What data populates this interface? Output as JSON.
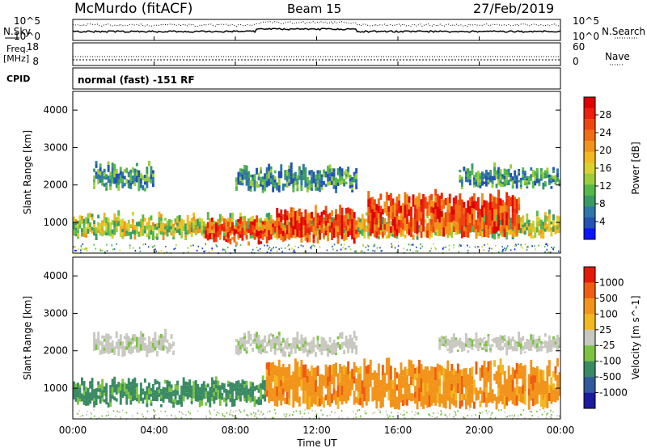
{
  "header": {
    "station": "McMurdo (fitACF)",
    "beam": "Beam 15",
    "date": "27/Feb/2019"
  },
  "top_panels": {
    "nsky_label": "N.Sky",
    "nsky_ticks": [
      "10^5",
      "10^0"
    ],
    "nsearch_label": "N.Search",
    "nsearch_ticks": [
      "10^5",
      "10^0"
    ],
    "freq_label": "Freq.",
    "freq_unit": "[MHz]",
    "freq_ticks": [
      "18",
      "8"
    ],
    "nave_label": "Nave",
    "nave_ticks": [
      "60",
      "0"
    ],
    "cpid_label": "CPID",
    "cpid_text": "normal (fast) -151 RF"
  },
  "x_axis": {
    "label": "Time UT",
    "ticks": [
      "00:00",
      "04:00",
      "08:00",
      "12:00",
      "16:00",
      "20:00",
      "00:00"
    ]
  },
  "chart_data": [
    {
      "type": "heatmap",
      "panel": "power",
      "ylabel": "Slant Range [km]",
      "yticks": [
        1000,
        2000,
        3000,
        4000
      ],
      "ylim": [
        180,
        4500
      ],
      "xlim_hours": [
        0,
        24
      ],
      "colorbar": {
        "label": "Power [dB]",
        "ticks": [
          "28",
          "24",
          "20",
          "16",
          "12",
          "8",
          "4"
        ],
        "colors": [
          "#0a14ff",
          "#2451b5",
          "#2f77a8",
          "#3a9a64",
          "#56b84a",
          "#9ccc3c",
          "#d9d22c",
          "#f2b821",
          "#f2941b",
          "#f06c15",
          "#ee4510",
          "#ec200c",
          "#e00000"
        ]
      },
      "bands": [
        {
          "hours": [
            0,
            24
          ],
          "range_km": [
            650,
            1150
          ],
          "level": "mid"
        },
        {
          "hours": [
            6.5,
            10
          ],
          "range_km": [
            500,
            1000
          ],
          "level": "high"
        },
        {
          "hours": [
            10,
            14
          ],
          "range_km": [
            550,
            1300
          ],
          "level": "high"
        },
        {
          "hours": [
            14.5,
            22
          ],
          "range_km": [
            700,
            1700
          ],
          "level": "high"
        },
        {
          "hours": [
            1,
            4
          ],
          "range_km": [
            1950,
            2450
          ],
          "level": "low"
        },
        {
          "hours": [
            8,
            14
          ],
          "range_km": [
            1900,
            2400
          ],
          "level": "low"
        },
        {
          "hours": [
            19,
            24
          ],
          "range_km": [
            2000,
            2400
          ],
          "level": "low"
        }
      ]
    },
    {
      "type": "heatmap",
      "panel": "velocity",
      "ylabel": "Slant Range [km]",
      "yticks": [
        1000,
        2000,
        3000,
        4000
      ],
      "ylim": [
        180,
        4500
      ],
      "xlim_hours": [
        0,
        24
      ],
      "colorbar": {
        "label": "Velocity [m s^-1]",
        "ticks": [
          "1000",
          "500",
          "100",
          "25",
          "-25",
          "-100",
          "-500",
          "-1000"
        ],
        "colors": [
          "#1a1aa0",
          "#2f5a9b",
          "#3a8a64",
          "#7cc342",
          "#c8c8c0",
          "#f2b821",
          "#f2941b",
          "#ee5d12",
          "#e31a0a"
        ]
      },
      "bands": [
        {
          "hours": [
            0,
            9.5
          ],
          "range_km": [
            600,
            1150
          ],
          "level": "green"
        },
        {
          "hours": [
            9.5,
            24
          ],
          "range_km": [
            550,
            1600
          ],
          "level": "orange"
        },
        {
          "hours": [
            1,
            5
          ],
          "range_km": [
            1950,
            2400
          ],
          "level": "grey"
        },
        {
          "hours": [
            8,
            14
          ],
          "range_km": [
            1950,
            2350
          ],
          "level": "grey"
        },
        {
          "hours": [
            18,
            24
          ],
          "range_km": [
            2000,
            2350
          ],
          "level": "grey"
        }
      ]
    }
  ]
}
